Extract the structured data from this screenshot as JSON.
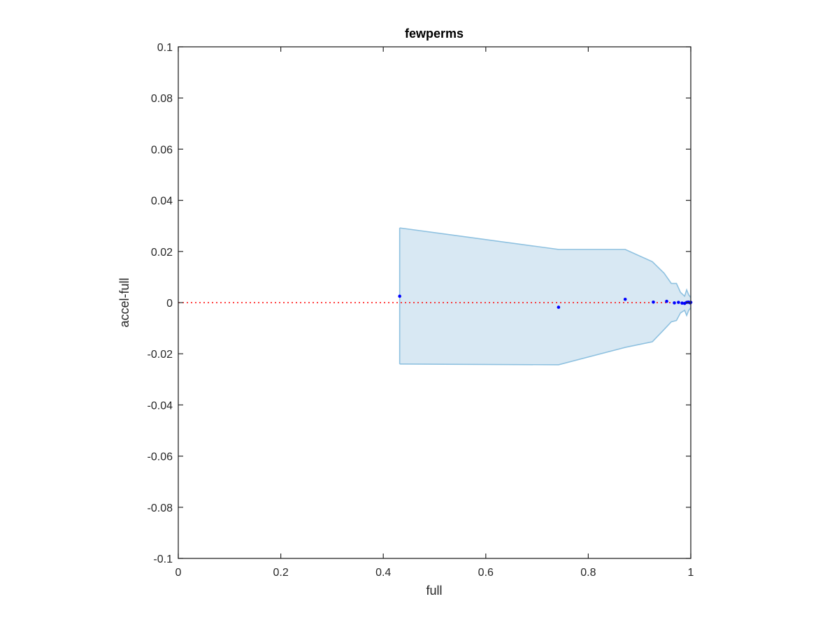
{
  "chart_data": {
    "type": "scatter",
    "title": "fewperms",
    "xlabel": "full",
    "ylabel": "accel-full",
    "xlim": [
      0,
      1
    ],
    "ylim": [
      -0.1,
      0.1
    ],
    "xticks": [
      0,
      0.2,
      0.4,
      0.6,
      0.8,
      1
    ],
    "xtick_labels": [
      "0",
      "0.2",
      "0.4",
      "0.6",
      "0.8",
      "1"
    ],
    "yticks": [
      0.1,
      0.08,
      0.06,
      0.04,
      0.02,
      0,
      -0.02,
      -0.04,
      -0.06,
      -0.08,
      -0.1
    ],
    "ytick_labels": [
      "0.1",
      "0.08",
      "0.06",
      "0.04",
      "0.02",
      "0",
      "-0.02",
      "-0.04",
      "-0.06",
      "-0.08",
      "-0.1"
    ],
    "grid": false,
    "reference_line": {
      "y": 0,
      "color": "#ff0000",
      "style": "dotted"
    },
    "band": {
      "fill_color": "#d8e8f3",
      "edge_color": "#8ec1e0",
      "x": [
        0.432,
        0.742,
        0.872,
        0.925,
        0.948,
        0.962,
        0.972,
        0.98,
        0.988,
        0.992,
        0.996,
        1.0
      ],
      "upper": [
        0.0292,
        0.0208,
        0.0208,
        0.016,
        0.0115,
        0.0075,
        0.0075,
        0.004,
        0.0025,
        0.005,
        0.003,
        0.002
      ],
      "lower": [
        -0.024,
        -0.0243,
        -0.0175,
        -0.0153,
        -0.0105,
        -0.0075,
        -0.007,
        -0.004,
        -0.003,
        -0.005,
        -0.003,
        -0.002
      ]
    },
    "points": {
      "color": "#0000ff",
      "x": [
        0.432,
        0.742,
        0.872,
        0.927,
        0.953,
        0.968,
        0.976,
        0.983,
        0.988,
        0.992,
        0.995,
        0.997,
        0.999,
        1.0
      ],
      "y": [
        0.0025,
        -0.0018,
        0.0013,
        0.0002,
        0.0005,
        -0.0001,
        0.0001,
        -0.0002,
        -0.0003,
        0.0001,
        0.0002,
        0.0001,
        -0.0001,
        0.0001
      ]
    }
  }
}
